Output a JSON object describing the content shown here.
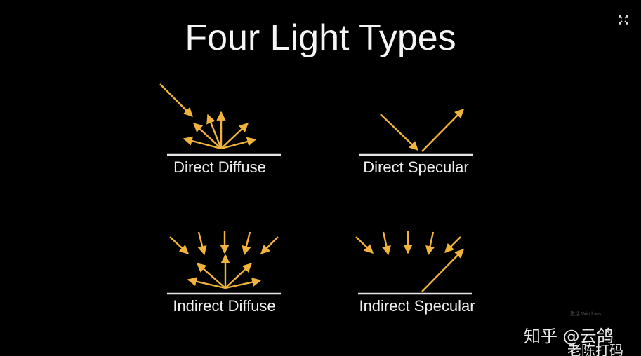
{
  "slide": {
    "title": "Four Light Types",
    "expand_icon": "expand-arrows-icon",
    "arrow_color": "#f2b33d",
    "surface_color": "#e6e6e6"
  },
  "diagrams": [
    {
      "id": "direct-diffuse",
      "label": "Direct Diffuse"
    },
    {
      "id": "direct-specular",
      "label": "Direct Specular"
    },
    {
      "id": "indirect-diffuse",
      "label": "Indirect Diffuse"
    },
    {
      "id": "indirect-specular",
      "label": "Indirect Specular"
    }
  ],
  "watermark": {
    "brand": "知乎 @云鸽",
    "sub": "老陈打码",
    "activate": "激活 Windows"
  }
}
